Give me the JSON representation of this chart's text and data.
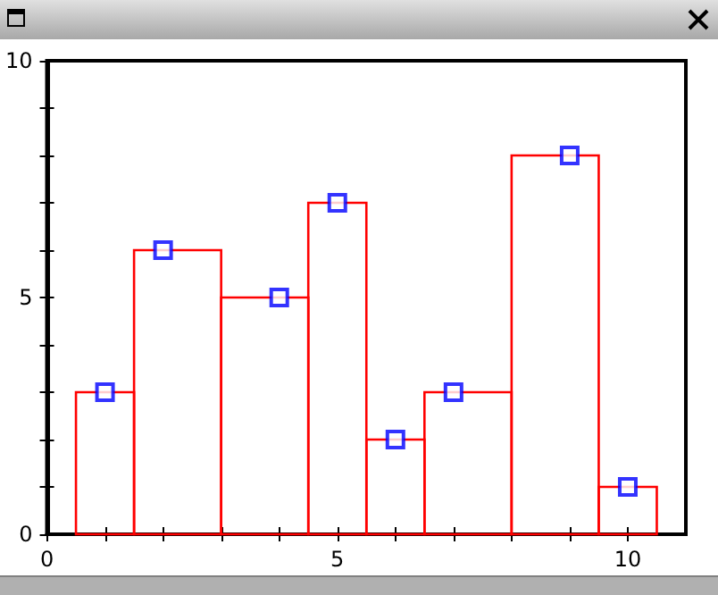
{
  "chart_data": {
    "type": "histogram",
    "xlim": [
      0,
      11
    ],
    "ylim": [
      0,
      10
    ],
    "xticks": [
      0,
      {
        "value": 1,
        "label": null
      },
      {
        "value": 2,
        "label": null
      },
      {
        "value": 3,
        "label": null
      },
      {
        "value": 4,
        "label": null
      },
      5,
      {
        "value": 6,
        "label": null
      },
      {
        "value": 7,
        "label": null
      },
      {
        "value": 8,
        "label": null
      },
      {
        "value": 9,
        "label": null
      },
      10
    ],
    "yticks": [
      0,
      {
        "value": 1,
        "label": null
      },
      {
        "value": 2,
        "label": null
      },
      {
        "value": 3,
        "label": null
      },
      {
        "value": 4,
        "label": null
      },
      5,
      {
        "value": 6,
        "label": null
      },
      {
        "value": 7,
        "label": null
      },
      {
        "value": 8,
        "label": null
      },
      {
        "value": 9,
        "label": null
      },
      10
    ],
    "grid": false,
    "marker": "square",
    "series": [
      {
        "color": "#ff0000",
        "bins": [
          0.5,
          1.5,
          3,
          4.5,
          5.5,
          6.5,
          8,
          9.5,
          10.5
        ],
        "values": [
          3,
          6,
          5,
          7,
          2,
          3,
          8,
          1
        ]
      },
      {
        "type": "scatter",
        "color": "#0000ff",
        "x": [
          1,
          2,
          4,
          5,
          6,
          7,
          9,
          10
        ],
        "values": [
          3,
          6,
          5,
          7,
          2,
          3,
          8,
          1
        ]
      }
    ]
  }
}
